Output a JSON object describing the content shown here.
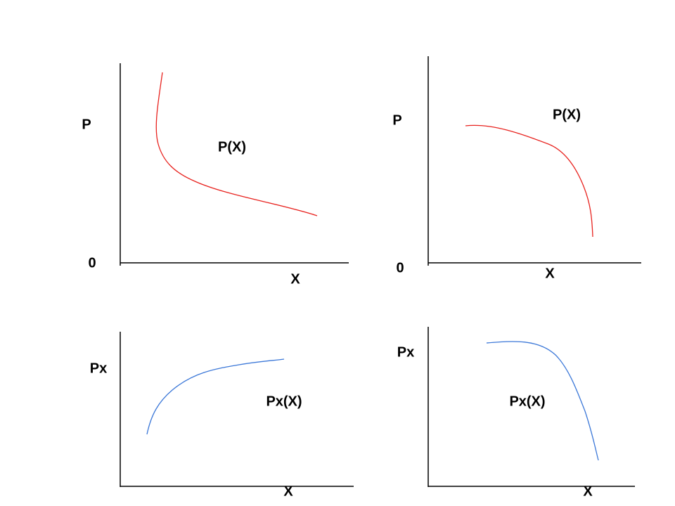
{
  "panels": [
    {
      "y_label": "P",
      "origin": "0",
      "x_label": "X",
      "curve_label": "P(X)"
    },
    {
      "y_label": "P",
      "origin": "0",
      "x_label": "X",
      "curve_label": "P(X)"
    },
    {
      "y_label": "Px",
      "x_label": "X",
      "curve_label": "Px(X)"
    },
    {
      "y_label": "Px",
      "x_label": "X",
      "curve_label": "Px(X)"
    }
  ]
}
